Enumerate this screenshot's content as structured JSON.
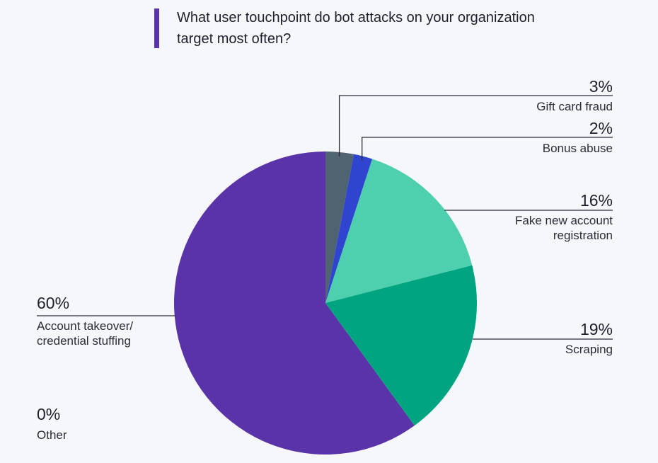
{
  "title": "What user touchpoint do bot attacks on your organization target most often?",
  "chart_data": {
    "type": "pie",
    "title": "What user touchpoint do bot attacks on your organization target most often?",
    "slices": [
      {
        "label": "Gift card fraud",
        "label_lines": [
          "Gift card fraud"
        ],
        "value": 3,
        "value_label": "3%",
        "color": "#4f6370"
      },
      {
        "label": "Bonus abuse",
        "label_lines": [
          "Bonus abuse"
        ],
        "value": 2,
        "value_label": "2%",
        "color": "#2f45d0"
      },
      {
        "label": "Fake new account registration",
        "label_lines": [
          "Fake new account",
          "registration"
        ],
        "value": 16,
        "value_label": "16%",
        "color": "#4ecfae"
      },
      {
        "label": "Scraping",
        "label_lines": [
          "Scraping"
        ],
        "value": 19,
        "value_label": "19%",
        "color": "#00a480"
      },
      {
        "label": "Account takeover/ credential stuffing",
        "label_lines": [
          "Account takeover/",
          "credential stuffing"
        ],
        "value": 60,
        "value_label": "60%",
        "color": "#5b33a8"
      },
      {
        "label": "Other",
        "label_lines": [
          "Other"
        ],
        "value": 0,
        "value_label": "0%",
        "color": "#8a8a8a"
      }
    ]
  }
}
